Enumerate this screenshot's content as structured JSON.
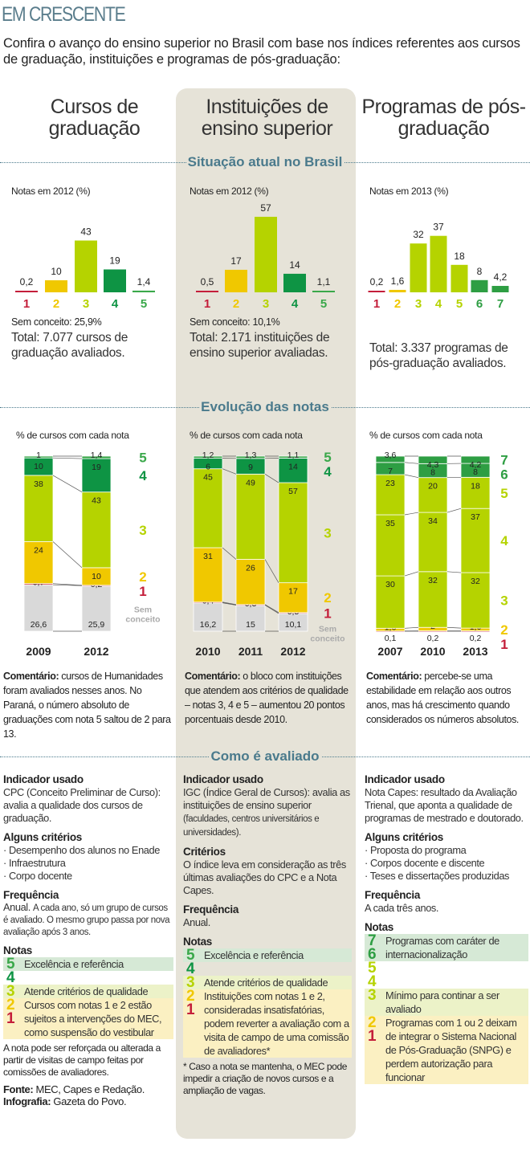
{
  "header": {
    "title": "EM CRESCENTE",
    "intro": "Confira o avanço do ensino superior no Brasil com base nos índices referentes aos cursos de graduação, instituições e programas de pós-graduação:"
  },
  "sections": {
    "situacao": "Situação atual no Brasil",
    "evolucao": "Evolução das notas",
    "como": "Como é avaliado"
  },
  "colors": {
    "nota1": "#c41e3a",
    "nota2": "#f0c800",
    "nota3": "#b5d300",
    "nota4": "#0e9444",
    "nota5": "#3aa84a",
    "nota67": "#2e9e43",
    "sem_conceito": "#d9d9d9",
    "section": "#4a7a8c",
    "panel": "#e6e3d8"
  },
  "columns": [
    {
      "title": "Cursos de graduação",
      "top": {
        "caption": "Notas em 2012 (%)",
        "sem_conceito": "Sem conceito: 25,9%",
        "total": "Total: 7.077 cursos de graduação avaliados."
      },
      "evol": {
        "caption": "% de cursos com cada nota"
      },
      "comment": {
        "label": "Comentário:",
        "text": "cursos de Humanidades foram avaliados nesses anos. No Paraná, o número absoluto de graduações com nota 5 saltou de 2 para 13."
      },
      "info": {
        "indicador_label": "Indicador usado",
        "indicador": "CPC (Conceito Preliminar de Curso): avalia a qualidade dos cursos de graduação.",
        "criterios_label": "Alguns critérios",
        "criterios": [
          "· Desempenho dos alunos no Enade",
          "· Infraestrutura",
          "· Corpo docente"
        ],
        "freq_label": "Frequência",
        "freq": "Anual.",
        "freq_detail": "A cada ano, só um grupo de cursos é avaliado. O mesmo grupo passa por nova avaliação após 3 anos."
      },
      "notas": {
        "label": "Notas",
        "rows": [
          {
            "digits": [
              "5"
            ],
            "text": "Excelência e referência",
            "bg": "#d6e9d6"
          },
          {
            "digits": [
              "4"
            ],
            "text": "",
            "bg": ""
          },
          {
            "digits": [
              "3"
            ],
            "text": "Atende critérios de qualidade",
            "bg": "#ecf2c8"
          },
          {
            "digits": [
              "2",
              "1"
            ],
            "text": "Cursos com notas 1 e 2 estão sujeitos a intervenções do MEC, como suspensão do vestibular",
            "bg": "#fbf0c2"
          }
        ],
        "footnote": "A nota pode ser reforçada ou alterada a partir de visitas de campo feitas por comissões de avaliadores."
      }
    },
    {
      "title": "Instituições de ensino superior",
      "top": {
        "caption": "Notas em 2012 (%)",
        "sem_conceito": "Sem conceito: 10,1%",
        "total": "Total: 2.171 instituições de ensino superior avaliadas."
      },
      "evol": {
        "caption": "% de cursos com cada nota"
      },
      "comment": {
        "label": "Comentário:",
        "text": "o bloco com instituições que atendem aos critérios de qualidade – notas 3, 4 e 5 – aumentou 20 pontos porcentuais desde 2010."
      },
      "info": {
        "indicador_label": "Indicador usado",
        "indicador": "IGC (Índice Geral de Cursos): avalia as instituições de ensino superior",
        "indicador_detail": "(faculdades, centros universitários e universidades).",
        "criterios_label": "Critérios",
        "criterios": [
          "O índice leva em consideração as três últimas avaliações do CPC e a Nota Capes."
        ],
        "freq_label": "Frequência",
        "freq": "Anual."
      },
      "notas": {
        "label": "Notas",
        "rows": [
          {
            "digits": [
              "5"
            ],
            "text": "Excelência e referência",
            "bg": "#d6e9d6"
          },
          {
            "digits": [
              "4"
            ],
            "text": "",
            "bg": ""
          },
          {
            "digits": [
              "3"
            ],
            "text": "Atende critérios de qualidade",
            "bg": "#ecf2c8"
          },
          {
            "digits": [
              "2",
              "1"
            ],
            "text": "Instituições com notas 1 e 2, consideradas insatisfatórias, podem reverter a avaliação com a visita de campo de uma comissão de avaliadores*",
            "bg": "#fbf0c2"
          }
        ],
        "footnote": "* Caso a nota se mantenha, o MEC pode impedir a criação de novos cursos e a ampliação de vagas."
      }
    },
    {
      "title": "Programas de pós-graduação",
      "top": {
        "caption": "Notas em 2013 (%)",
        "total": "Total: 3.337 programas de pós-graduação avaliados."
      },
      "evol": {
        "caption": "% de cursos com cada nota"
      },
      "comment": {
        "label": "Comentário:",
        "text": "percebe-se uma estabilidade em relação aos outros anos, mas há crescimento quando considerados os números absolutos."
      },
      "info": {
        "indicador_label": "Indicador usado",
        "indicador": "Nota Capes: resultado da Avaliação Trienal, que aponta a qualidade de programas de mestrado e doutorado.",
        "criterios_label": "Alguns critérios",
        "criterios": [
          "· Proposta do programa",
          "· Corpos docente e discente",
          "· Teses e dissertações produzidas"
        ],
        "freq_label": "Frequência",
        "freq": "A cada três anos."
      },
      "notas": {
        "label": "Notas",
        "rows": [
          {
            "digits": [
              "7",
              "6"
            ],
            "text": "Programas com caráter de internacionalização",
            "bg": "#d6e9d6"
          },
          {
            "digits": [
              "5"
            ],
            "text": "",
            "bg": ""
          },
          {
            "digits": [
              "4"
            ],
            "text": "",
            "bg": ""
          },
          {
            "digits": [
              "3"
            ],
            "text": "Mínimo para continar a ser avaliado",
            "bg": "#ecf2c8"
          },
          {
            "digits": [
              "2",
              "1"
            ],
            "text": "Programas com 1 ou 2 deixam de integrar o Sistema Nacional de Pós-Graduação (SNPG) e perdem autorização para funcionar",
            "bg": "#fbf0c2"
          }
        ]
      }
    }
  ],
  "source": {
    "fonte_label": "Fonte:",
    "fonte": "MEC, Capes e Redação.",
    "info_label": "Infografia:",
    "info": "Gazeta do Povo."
  },
  "chart_data": [
    {
      "type": "bar",
      "title": "Notas em 2012 (%)",
      "categories": [
        "1",
        "2",
        "3",
        "4",
        "5"
      ],
      "values": [
        0.2,
        10,
        43,
        19,
        1.4
      ],
      "labels": [
        "0,2",
        "10",
        "43",
        "19",
        "1,4"
      ]
    },
    {
      "type": "bar",
      "title": "Notas em 2012 (%)",
      "categories": [
        "1",
        "2",
        "3",
        "4",
        "5"
      ],
      "values": [
        0.5,
        17,
        57,
        14,
        1.1
      ],
      "labels": [
        "0,5",
        "17",
        "57",
        "14",
        "1,1"
      ]
    },
    {
      "type": "bar",
      "title": "Notas em 2013 (%)",
      "categories": [
        "1",
        "2",
        "3",
        "4",
        "5",
        "6",
        "7"
      ],
      "values": [
        0.2,
        1.6,
        32,
        37,
        18,
        8,
        4.2
      ],
      "labels": [
        "0,2",
        "1,6",
        "32",
        "37",
        "18",
        "8",
        "4,2"
      ]
    },
    {
      "type": "bar",
      "stacked": true,
      "title": "% de cursos com cada nota",
      "categories": [
        "2009",
        "2012"
      ],
      "series": [
        {
          "name": "Sem conceito",
          "values": [
            26.6,
            25.9
          ],
          "labels": [
            "26,6",
            "25,9"
          ]
        },
        {
          "name": "1",
          "values": [
            0.7,
            0.2
          ],
          "labels": [
            "0,7",
            "0,2"
          ]
        },
        {
          "name": "2",
          "values": [
            24,
            10
          ],
          "labels": [
            "24",
            "10"
          ]
        },
        {
          "name": "3",
          "values": [
            38,
            43
          ],
          "labels": [
            "38",
            "43"
          ]
        },
        {
          "name": "4",
          "values": [
            10,
            19
          ],
          "labels": [
            "10",
            "19"
          ]
        },
        {
          "name": "5",
          "values": [
            1,
            1.4
          ],
          "labels": [
            "1",
            "1,4"
          ]
        }
      ]
    },
    {
      "type": "bar",
      "stacked": true,
      "title": "% de cursos com cada nota",
      "categories": [
        "2010",
        "2011",
        "2012"
      ],
      "series": [
        {
          "name": "Sem conceito",
          "values": [
            16.2,
            15,
            10.1
          ],
          "labels": [
            "16,2",
            "15",
            "10,1"
          ]
        },
        {
          "name": "1",
          "values": [
            0.4,
            0.3,
            0.5
          ],
          "labels": [
            "0,4",
            "0,3",
            "0,5"
          ]
        },
        {
          "name": "2",
          "values": [
            31,
            26,
            17
          ],
          "labels": [
            "31",
            "26",
            "17"
          ]
        },
        {
          "name": "3",
          "values": [
            45,
            49,
            57
          ],
          "labels": [
            "45",
            "49",
            "57"
          ]
        },
        {
          "name": "4",
          "values": [
            6,
            9,
            14
          ],
          "labels": [
            "6",
            "9",
            "14"
          ]
        },
        {
          "name": "5",
          "values": [
            1.2,
            1.3,
            1.1
          ],
          "labels": [
            "1,2",
            "1,3",
            "1,1"
          ]
        }
      ]
    },
    {
      "type": "bar",
      "stacked": true,
      "title": "% de cursos com cada nota",
      "categories": [
        "2007",
        "2010",
        "2013"
      ],
      "series": [
        {
          "name": "1",
          "values": [
            0.1,
            0.2,
            0.2
          ],
          "labels": [
            "0,1",
            "0,2",
            "0,2"
          ]
        },
        {
          "name": "2",
          "values": [
            1.6,
            2,
            1.6
          ],
          "labels": [
            "1,6",
            "2",
            "1,6"
          ]
        },
        {
          "name": "3",
          "values": [
            30,
            32,
            32
          ],
          "labels": [
            "30",
            "32",
            "32"
          ]
        },
        {
          "name": "4",
          "values": [
            35,
            34,
            37
          ],
          "labels": [
            "35",
            "34",
            "37"
          ]
        },
        {
          "name": "5",
          "values": [
            23,
            20,
            18
          ],
          "labels": [
            "23",
            "20",
            "18"
          ]
        },
        {
          "name": "6",
          "values": [
            7,
            8,
            8
          ],
          "labels": [
            "7",
            "8",
            "8"
          ]
        },
        {
          "name": "7",
          "values": [
            3.6,
            4.3,
            4.2
          ],
          "labels": [
            "3,6",
            "4,3",
            "4,2"
          ]
        }
      ]
    }
  ]
}
